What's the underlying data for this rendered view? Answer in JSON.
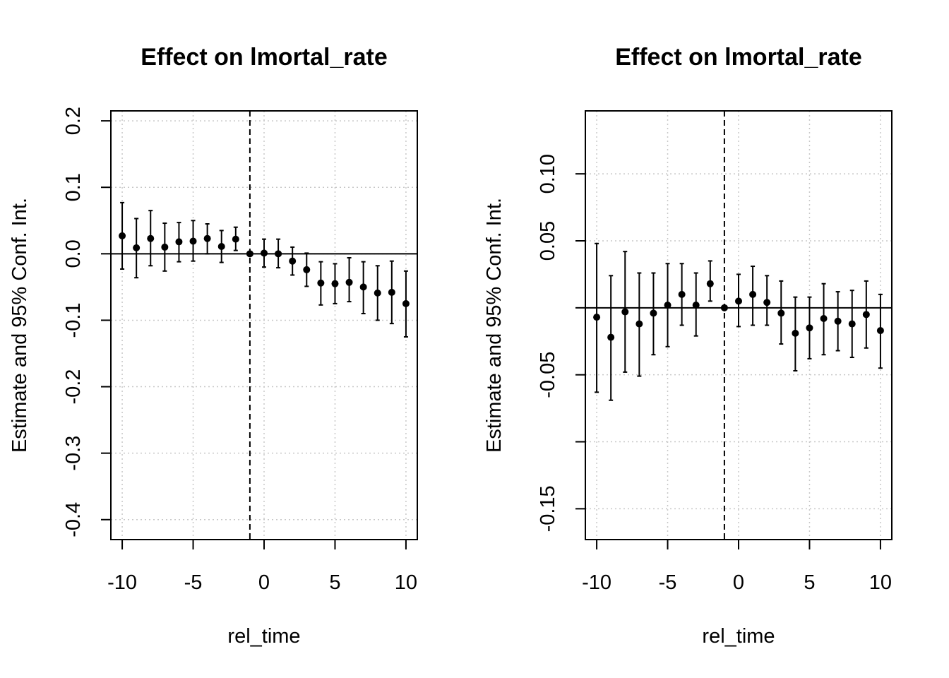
{
  "chart_data": [
    {
      "type": "scatter",
      "title": "Effect on lmortal_rate",
      "xlabel": "rel_time",
      "ylabel": "Estimate and 95% Conf. Int.",
      "xlim": [
        -10.8,
        10.8
      ],
      "ylim": [
        -0.43,
        0.215
      ],
      "x_ticks": [
        -10,
        -5,
        0,
        5,
        10
      ],
      "x_tick_labels": [
        "-10",
        "-5",
        "0",
        "5",
        "10"
      ],
      "y_ticks": [
        0.2,
        0.1,
        0.0,
        -0.1,
        -0.2,
        -0.3,
        -0.4
      ],
      "y_tick_labels": [
        "0.2",
        "0.1",
        "0.0",
        "-0.1",
        "-0.2",
        "-0.3",
        "-0.4"
      ],
      "grid": true,
      "reference_hline": 0,
      "reference_vline": -1,
      "x": [
        -10,
        -9,
        -8,
        -7,
        -6,
        -5,
        -4,
        -3,
        -2,
        -1,
        0,
        1,
        2,
        3,
        4,
        5,
        6,
        7,
        8,
        9,
        10
      ],
      "estimate": [
        0.027,
        0.009,
        0.023,
        0.01,
        0.018,
        0.019,
        0.023,
        0.011,
        0.022,
        0.0,
        0.001,
        0.0,
        -0.011,
        -0.024,
        -0.044,
        -0.045,
        -0.043,
        -0.05,
        -0.059,
        -0.058,
        -0.075
      ],
      "ci_lower": [
        -0.023,
        -0.036,
        -0.018,
        -0.026,
        -0.012,
        -0.011,
        0.0,
        -0.013,
        0.005,
        0.0,
        -0.02,
        -0.021,
        -0.032,
        -0.049,
        -0.077,
        -0.075,
        -0.072,
        -0.09,
        -0.1,
        -0.105,
        -0.125
      ],
      "ci_upper": [
        0.077,
        0.053,
        0.065,
        0.046,
        0.047,
        0.05,
        0.045,
        0.035,
        0.04,
        0.0,
        0.022,
        0.022,
        0.01,
        0.001,
        -0.012,
        -0.015,
        -0.006,
        -0.012,
        -0.018,
        -0.011,
        -0.026
      ]
    },
    {
      "type": "scatter",
      "title": "Effect on lmortal_rate",
      "xlabel": "rel_time",
      "ylabel": "Estimate and 95% Conf. Int.",
      "xlim": [
        -10.8,
        10.8
      ],
      "ylim": [
        -0.173,
        0.147
      ],
      "x_ticks": [
        -10,
        -5,
        0,
        5,
        10
      ],
      "x_tick_labels": [
        "-10",
        "-5",
        "0",
        "5",
        "10"
      ],
      "y_ticks": [
        0.1,
        0.05,
        0.0,
        -0.05,
        -0.1,
        -0.15
      ],
      "y_tick_labels": [
        "0.10",
        "0.05",
        "",
        "-0.05",
        "",
        "-0.15"
      ],
      "grid": true,
      "reference_hline": 0,
      "reference_vline": -1,
      "x": [
        -10,
        -9,
        -8,
        -7,
        -6,
        -5,
        -4,
        -3,
        -2,
        -1,
        0,
        1,
        2,
        3,
        4,
        5,
        6,
        7,
        8,
        9,
        10
      ],
      "estimate": [
        -0.007,
        -0.022,
        -0.003,
        -0.012,
        -0.004,
        0.002,
        0.01,
        0.002,
        0.018,
        0.0,
        0.005,
        0.01,
        0.004,
        -0.004,
        -0.019,
        -0.015,
        -0.008,
        -0.01,
        -0.012,
        -0.005,
        -0.017
      ],
      "ci_lower": [
        -0.063,
        -0.069,
        -0.048,
        -0.051,
        -0.035,
        -0.029,
        -0.013,
        -0.021,
        0.005,
        0.0,
        -0.014,
        -0.013,
        -0.013,
        -0.027,
        -0.047,
        -0.038,
        -0.035,
        -0.032,
        -0.037,
        -0.03,
        -0.045
      ],
      "ci_upper": [
        0.048,
        0.024,
        0.042,
        0.026,
        0.026,
        0.033,
        0.033,
        0.026,
        0.035,
        0.0,
        0.025,
        0.031,
        0.024,
        0.02,
        0.008,
        0.008,
        0.018,
        0.012,
        0.013,
        0.02,
        0.01
      ]
    }
  ]
}
